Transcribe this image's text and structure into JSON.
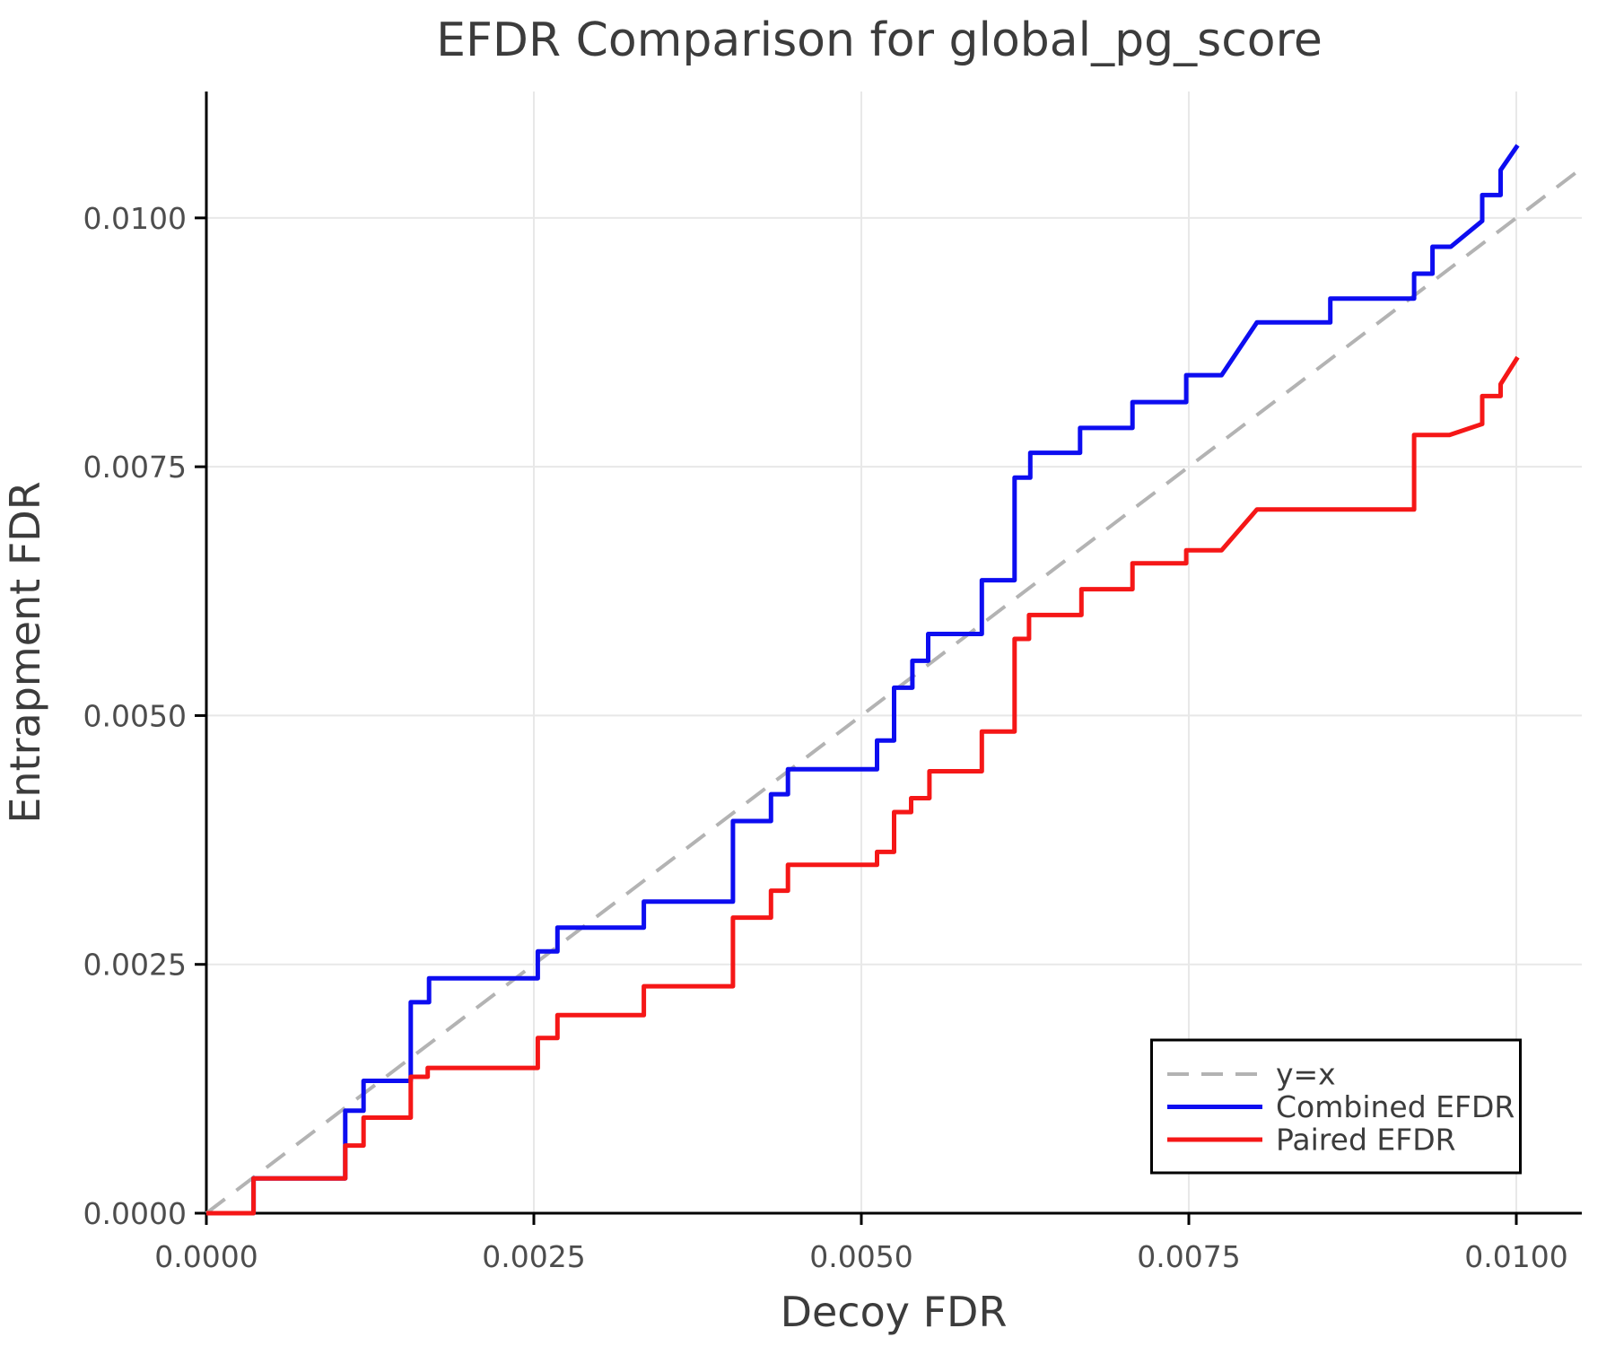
{
  "title": "EFDR Comparison for global_pg_score",
  "x_axis": {
    "label": "Decoy FDR",
    "tick_labels": [
      "0.0000",
      "0.0025",
      "0.0050",
      "0.0075",
      "0.0100"
    ],
    "tick_values": [
      0,
      0.0025,
      0.005,
      0.0075,
      0.01
    ]
  },
  "y_axis": {
    "label": "Entrapment FDR",
    "tick_labels": [
      "0.0000",
      "0.0025",
      "0.0050",
      "0.0075",
      "0.0100"
    ],
    "tick_values": [
      0,
      0.0025,
      0.005,
      0.0075,
      0.01
    ]
  },
  "legend": {
    "items": [
      {
        "label": "y=x",
        "color": "#b3b3b3",
        "style": "dashed"
      },
      {
        "label": "Combined EFDR",
        "color": "#0d0df0",
        "style": "solid"
      },
      {
        "label": "Paired EFDR",
        "color": "#f51717",
        "style": "solid"
      }
    ]
  },
  "colors": {
    "grid": "#e8e8e8",
    "spine": "#000000",
    "identity": "#b3b3b3",
    "combined": "#0d0df0",
    "paired": "#f51717",
    "legend_border": "#000000",
    "background": "#ffffff"
  },
  "chart_data": {
    "type": "line",
    "title": "EFDR Comparison for global_pg_score",
    "xlabel": "Decoy FDR",
    "ylabel": "Entrapment FDR",
    "xlim": [
      0,
      0.0105
    ],
    "ylim": [
      0,
      0.01127
    ],
    "grid": true,
    "legend_position": "lower right",
    "series": [
      {
        "name": "y=x",
        "style": "dashed",
        "color": "#b3b3b3",
        "points": [
          [
            0,
            0
          ],
          [
            0.0105,
            0.0105
          ]
        ]
      },
      {
        "name": "Combined EFDR",
        "style": "solid",
        "color": "#0d0df0",
        "points": [
          [
            0.0,
            0.0
          ],
          [
            0.00036,
            0.0
          ],
          [
            0.00036,
            0.00035
          ],
          [
            0.00106,
            0.00035
          ],
          [
            0.00106,
            0.00103
          ],
          [
            0.0012,
            0.00103
          ],
          [
            0.0012,
            0.00133
          ],
          [
            0.00156,
            0.00133
          ],
          [
            0.00156,
            0.00212
          ],
          [
            0.0017,
            0.00212
          ],
          [
            0.0017,
            0.00236
          ],
          [
            0.00253,
            0.00236
          ],
          [
            0.00253,
            0.00263
          ],
          [
            0.00268,
            0.00263
          ],
          [
            0.00268,
            0.00287
          ],
          [
            0.00334,
            0.00287
          ],
          [
            0.00334,
            0.00313
          ],
          [
            0.00402,
            0.00313
          ],
          [
            0.00402,
            0.00394
          ],
          [
            0.00431,
            0.00394
          ],
          [
            0.00431,
            0.00421
          ],
          [
            0.00444,
            0.00421
          ],
          [
            0.00444,
            0.00446
          ],
          [
            0.00512,
            0.00446
          ],
          [
            0.00512,
            0.00475
          ],
          [
            0.00525,
            0.00475
          ],
          [
            0.00525,
            0.00528
          ],
          [
            0.00539,
            0.00528
          ],
          [
            0.00539,
            0.00555
          ],
          [
            0.00551,
            0.00555
          ],
          [
            0.00551,
            0.00582
          ],
          [
            0.00592,
            0.00582
          ],
          [
            0.00592,
            0.00636
          ],
          [
            0.00617,
            0.00636
          ],
          [
            0.00617,
            0.00739
          ],
          [
            0.00629,
            0.00739
          ],
          [
            0.00629,
            0.00764
          ],
          [
            0.00667,
            0.00764
          ],
          [
            0.00667,
            0.00789
          ],
          [
            0.00707,
            0.00789
          ],
          [
            0.00707,
            0.00815
          ],
          [
            0.00748,
            0.00815
          ],
          [
            0.00748,
            0.00842
          ],
          [
            0.00775,
            0.00842
          ],
          [
            0.00802,
            0.00895
          ],
          [
            0.00858,
            0.00895
          ],
          [
            0.00858,
            0.00919
          ],
          [
            0.00922,
            0.00919
          ],
          [
            0.00922,
            0.00944
          ],
          [
            0.00936,
            0.00944
          ],
          [
            0.00936,
            0.00971
          ],
          [
            0.0095,
            0.00971
          ],
          [
            0.00974,
            0.00997
          ],
          [
            0.00974,
            0.01023
          ],
          [
            0.00988,
            0.01023
          ],
          [
            0.00988,
            0.01048
          ],
          [
            0.01001,
            0.01073
          ]
        ]
      },
      {
        "name": "Paired EFDR",
        "style": "solid",
        "color": "#f51717",
        "points": [
          [
            0.0,
            0.0
          ],
          [
            0.00036,
            0.0
          ],
          [
            0.00036,
            0.00035
          ],
          [
            0.00106,
            0.00035
          ],
          [
            0.00106,
            0.00068
          ],
          [
            0.0012,
            0.00068
          ],
          [
            0.0012,
            0.00096
          ],
          [
            0.00156,
            0.00096
          ],
          [
            0.00156,
            0.00137
          ],
          [
            0.00169,
            0.00137
          ],
          [
            0.00169,
            0.00146
          ],
          [
            0.00253,
            0.00146
          ],
          [
            0.00253,
            0.00176
          ],
          [
            0.00268,
            0.00176
          ],
          [
            0.00268,
            0.00199
          ],
          [
            0.00334,
            0.00199
          ],
          [
            0.00334,
            0.00228
          ],
          [
            0.00402,
            0.00228
          ],
          [
            0.00402,
            0.00297
          ],
          [
            0.00431,
            0.00297
          ],
          [
            0.00431,
            0.00324
          ],
          [
            0.00444,
            0.00324
          ],
          [
            0.00444,
            0.0035
          ],
          [
            0.00512,
            0.0035
          ],
          [
            0.00512,
            0.00363
          ],
          [
            0.00525,
            0.00363
          ],
          [
            0.00525,
            0.00403
          ],
          [
            0.00538,
            0.00403
          ],
          [
            0.00538,
            0.00417
          ],
          [
            0.00552,
            0.00417
          ],
          [
            0.00552,
            0.00444
          ],
          [
            0.00592,
            0.00444
          ],
          [
            0.00592,
            0.00484
          ],
          [
            0.00617,
            0.00484
          ],
          [
            0.00617,
            0.00577
          ],
          [
            0.00628,
            0.00577
          ],
          [
            0.00628,
            0.00601
          ],
          [
            0.00668,
            0.00601
          ],
          [
            0.00668,
            0.00627
          ],
          [
            0.00707,
            0.00627
          ],
          [
            0.00707,
            0.00653
          ],
          [
            0.00748,
            0.00653
          ],
          [
            0.00748,
            0.00666
          ],
          [
            0.00775,
            0.00666
          ],
          [
            0.00802,
            0.00707
          ],
          [
            0.00922,
            0.00707
          ],
          [
            0.00922,
            0.00782
          ],
          [
            0.00949,
            0.00782
          ],
          [
            0.00974,
            0.00793
          ],
          [
            0.00974,
            0.00821
          ],
          [
            0.00988,
            0.00821
          ],
          [
            0.00988,
            0.00833
          ],
          [
            0.01001,
            0.0086
          ]
        ]
      }
    ]
  }
}
